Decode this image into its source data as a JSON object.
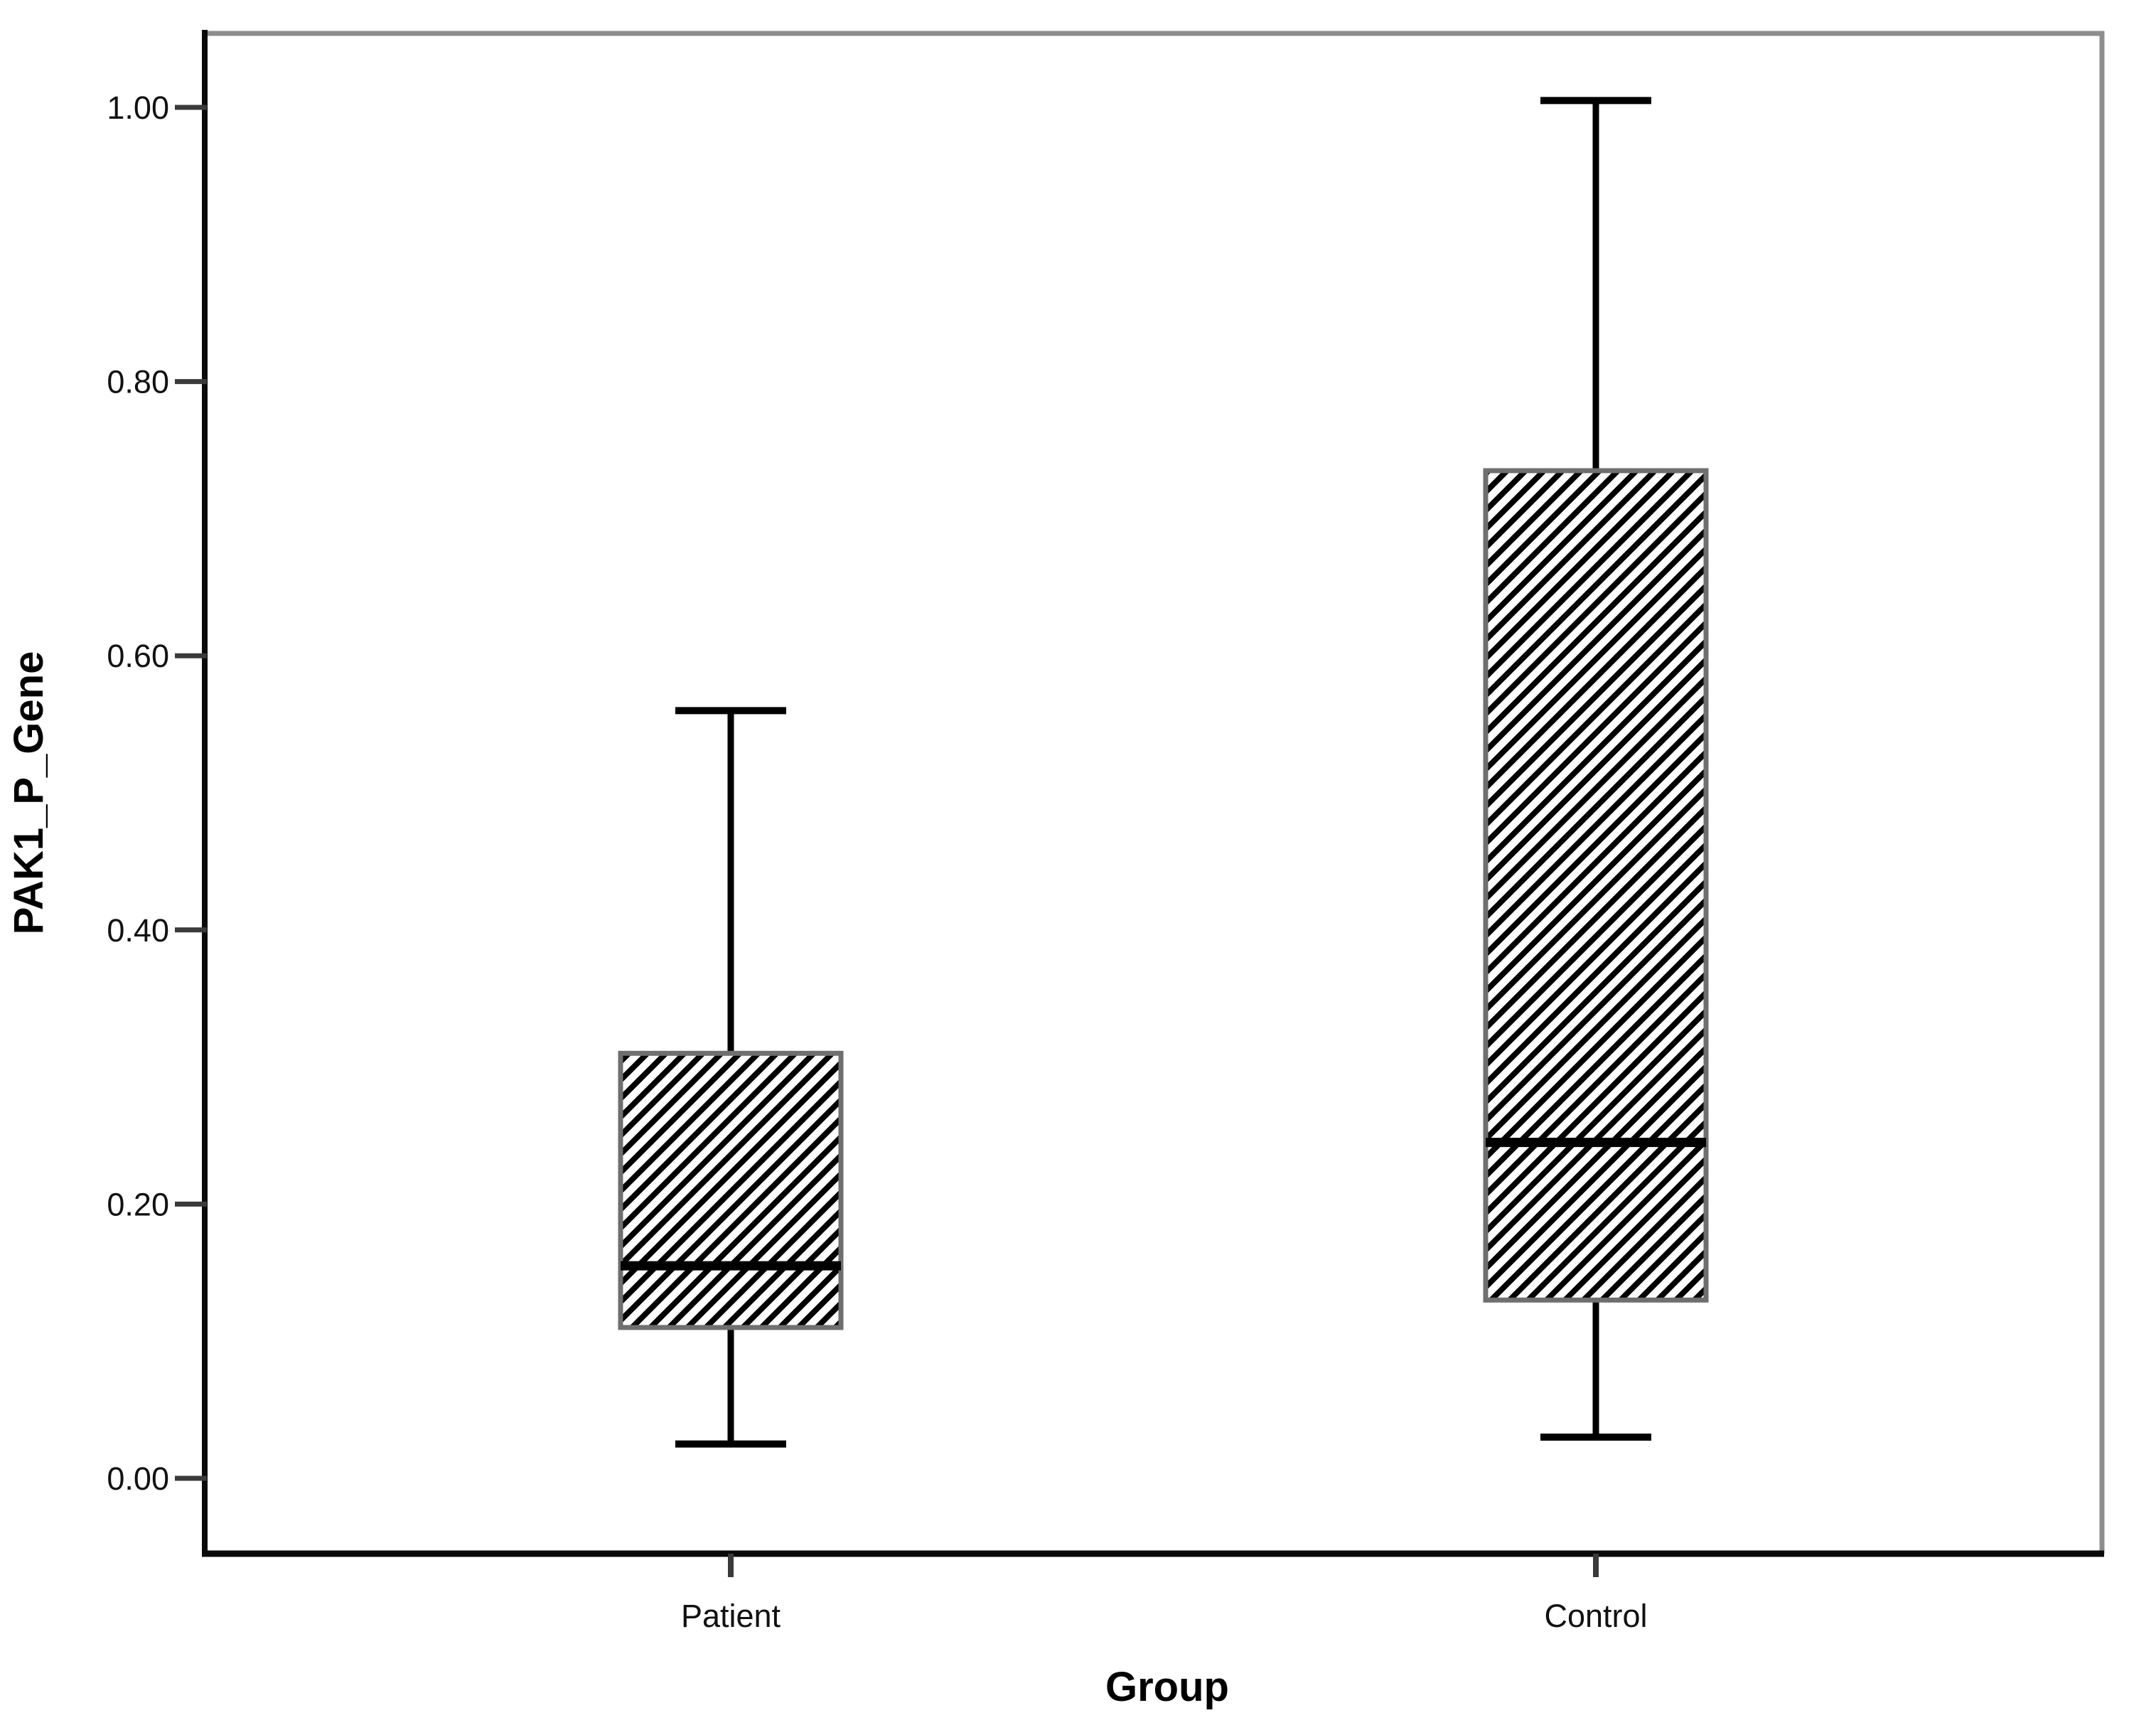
{
  "chart_data": {
    "type": "box",
    "title": "",
    "xlabel": "Group",
    "ylabel": "PAK1_P_Gene",
    "categories": [
      "Patient",
      "Control"
    ],
    "y_ticks": [
      0.0,
      0.2,
      0.4,
      0.6,
      0.8,
      1.0
    ],
    "y_tick_labels": [
      "0.00",
      "0.20",
      "0.40",
      "0.60",
      "0.80",
      "1.00"
    ],
    "ylim": [
      -0.055,
      1.055
    ],
    "grid": false,
    "legend": false,
    "series": [
      {
        "name": "Patient",
        "min": 0.025,
        "q1": 0.11,
        "median": 0.155,
        "q3": 0.31,
        "max": 0.56,
        "outliers": []
      },
      {
        "name": "Control",
        "min": 0.03,
        "q1": 0.13,
        "median": 0.245,
        "q3": 0.735,
        "max": 1.005,
        "outliers": []
      }
    ],
    "style": {
      "box_fill": "diagonal-hatch",
      "hatch_color": "#000000",
      "box_border_color": "#6f6f6f",
      "median_color": "#000000",
      "whisker_color": "#000000",
      "frame_gray_color": "#8d8d8d",
      "axis_color": "#0a0a0a",
      "tick_color": "#3a3a3a",
      "text_color": "#111111",
      "background": "#ffffff"
    }
  }
}
